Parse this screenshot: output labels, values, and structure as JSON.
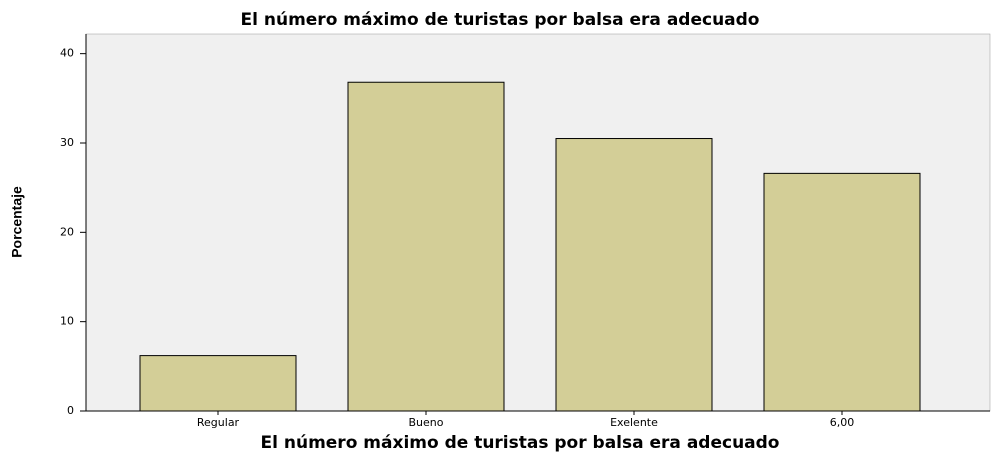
{
  "chart_data": {
    "type": "bar",
    "title": "El número máximo de turistas por balsa era adecuado",
    "x_label": "El número máximo de turistas por balsa era adecuado",
    "y_label": "Porcentaje",
    "categories": [
      "Regular",
      "Bueno",
      "Exelente",
      "6,00"
    ],
    "values": [
      6.2,
      36.8,
      30.5,
      26.6
    ],
    "color": "#d3ce97",
    "ylim": [
      0,
      42.2
    ],
    "yticks": [
      0,
      10,
      20,
      30,
      40
    ],
    "grid": false
  }
}
